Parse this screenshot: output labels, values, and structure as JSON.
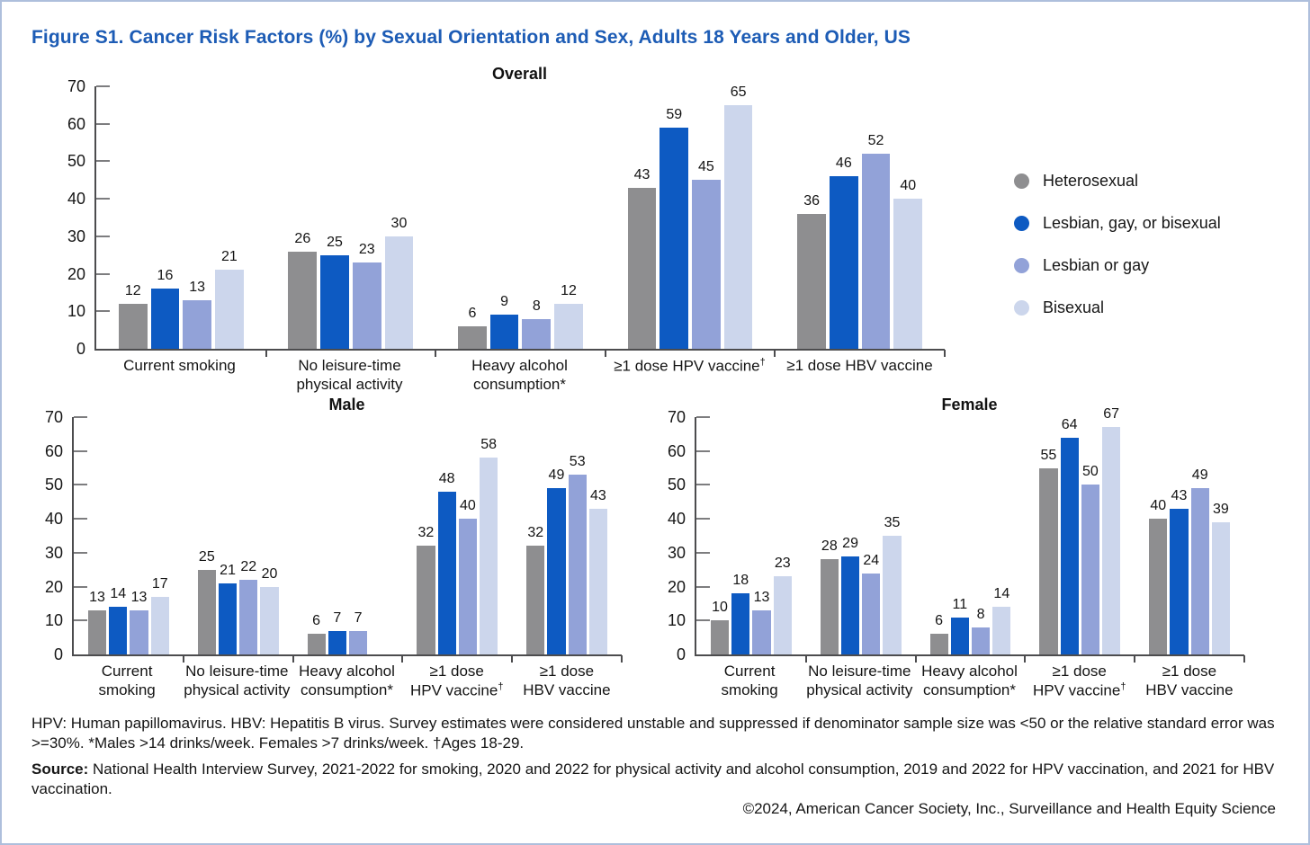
{
  "figure": {
    "title": "Figure S1. Cancer Risk Factors (%) by Sexual Orientation and Sex, Adults 18 Years and Older, US",
    "footnote": "HPV: Human papillomavirus. HBV: Hepatitis B virus. Survey estimates were considered unstable and suppressed if denominator sample size was <50 or the relative standard error was >=30%. *Males >14 drinks/week. Females >7 drinks/week. †Ages 18-29.",
    "source_label": "Source:",
    "source_text": " National Health Interview Survey, 2021-2022 for smoking, 2020 and 2022 for physical activity and alcohol consumption, 2019 and 2022 for HPV vaccination, and 2021 for HBV vaccination.",
    "copyright": "©2024, American Cancer Society, Inc., Surveillance and Health Equity Science"
  },
  "colors": {
    "title": "#1d5cb5",
    "border": "#aebfdc",
    "axis": "#4c4c4e",
    "series": [
      "#8e8e90",
      "#0d5ac2",
      "#92a2d8",
      "#ccd6ec"
    ]
  },
  "legend": {
    "position": "right",
    "items": [
      {
        "label": "Heterosexual",
        "color": "#8e8e90"
      },
      {
        "label": "Lesbian, gay, or bisexual",
        "color": "#0d5ac2"
      },
      {
        "label": "Lesbian or gay",
        "color": "#92a2d8"
      },
      {
        "label": "Bisexual",
        "color": "#ccd6ec"
      }
    ]
  },
  "chart_data": [
    {
      "type": "bar",
      "title": "Overall",
      "categories": [
        [
          "Current smoking"
        ],
        [
          "No leisure-time",
          "physical activity"
        ],
        [
          "Heavy alcohol consumption*"
        ],
        [
          "≥1 dose HPV vaccine†"
        ],
        [
          "≥1 dose HBV vaccine"
        ]
      ],
      "series": [
        {
          "name": "Heterosexual",
          "values": [
            12,
            26,
            6,
            43,
            36
          ]
        },
        {
          "name": "Lesbian, gay, or bisexual",
          "values": [
            16,
            25,
            9,
            59,
            46
          ]
        },
        {
          "name": "Lesbian or gay",
          "values": [
            13,
            23,
            8,
            45,
            52
          ]
        },
        {
          "name": "Bisexual",
          "values": [
            21,
            30,
            12,
            65,
            40
          ]
        }
      ],
      "xlabel": "",
      "ylabel": "",
      "ylim": [
        0,
        70
      ],
      "yticks": [
        0,
        10,
        20,
        30,
        40,
        50,
        60,
        70
      ],
      "grid": false,
      "legend_position": "right"
    },
    {
      "type": "bar",
      "title": "Male",
      "categories": [
        [
          "Current smoking"
        ],
        [
          "No leisure-time",
          "physical activity"
        ],
        [
          "Heavy alcohol",
          "consumption*"
        ],
        [
          "≥1 dose",
          "HPV vaccine†"
        ],
        [
          "≥1 dose",
          "HBV vaccine"
        ]
      ],
      "series": [
        {
          "name": "Heterosexual",
          "values": [
            13,
            25,
            6,
            32,
            32
          ]
        },
        {
          "name": "Lesbian, gay, or bisexual",
          "values": [
            14,
            21,
            7,
            48,
            49
          ]
        },
        {
          "name": "Lesbian or gay",
          "values": [
            13,
            22,
            7,
            40,
            53
          ]
        },
        {
          "name": "Bisexual",
          "values": [
            17,
            20,
            null,
            58,
            43
          ]
        }
      ],
      "xlabel": "",
      "ylabel": "",
      "ylim": [
        0,
        70
      ],
      "yticks": [
        0,
        10,
        20,
        30,
        40,
        50,
        60,
        70
      ],
      "grid": false,
      "note": "Bisexual heavy alcohol consumption value suppressed"
    },
    {
      "type": "bar",
      "title": "Female",
      "categories": [
        [
          "Current smoking"
        ],
        [
          "No leisure-time",
          "physical activity"
        ],
        [
          "Heavy alcohol",
          "consumption*"
        ],
        [
          "≥1 dose",
          "HPV vaccine†"
        ],
        [
          "≥1 dose",
          "HBV vaccine"
        ]
      ],
      "series": [
        {
          "name": "Heterosexual",
          "values": [
            10,
            28,
            6,
            55,
            40
          ]
        },
        {
          "name": "Lesbian, gay, or bisexual",
          "values": [
            18,
            29,
            11,
            64,
            43
          ]
        },
        {
          "name": "Lesbian or gay",
          "values": [
            13,
            24,
            8,
            50,
            49
          ]
        },
        {
          "name": "Bisexual",
          "values": [
            23,
            35,
            14,
            67,
            39
          ]
        }
      ],
      "xlabel": "",
      "ylabel": "",
      "ylim": [
        0,
        70
      ],
      "yticks": [
        0,
        10,
        20,
        30,
        40,
        50,
        60,
        70
      ],
      "grid": false
    }
  ]
}
